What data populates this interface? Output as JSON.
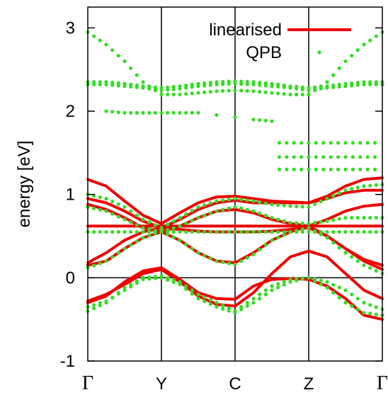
{
  "chart_data": {
    "type": "line",
    "title": "",
    "ylabel": "energy [eV]",
    "xlabel": "",
    "ylim": [
      -1,
      3.25
    ],
    "yticks": [
      "-1",
      "0",
      "1",
      "2",
      "3"
    ],
    "kpoints": [
      "Γ",
      "Y",
      "C",
      "Z",
      "Γ"
    ],
    "grid": {
      "vertical_at_kpoints": true,
      "horizontal_at_zero": true
    },
    "legend": {
      "placement": "top-right",
      "entries": [
        "linearised",
        "QPB"
      ]
    },
    "colors": {
      "linearised": "#ee0000",
      "QPB": "#33dd22"
    },
    "series": [
      {
        "name": "linearised",
        "style": "line",
        "bands": [
          {
            "x": [
              0,
              0.25,
              0.5,
              0.75,
              1,
              1.25,
              1.5,
              1.75,
              2,
              2.25,
              2.5,
              2.75,
              3,
              3.25,
              3.5,
              3.75,
              4
            ],
            "y": [
              -0.3,
              -0.22,
              -0.05,
              0.08,
              0.12,
              -0.02,
              -0.18,
              -0.25,
              -0.26,
              -0.1,
              -0.02,
              -0.01,
              -0.02,
              -0.1,
              -0.25,
              -0.45,
              -0.5
            ]
          },
          {
            "x": [
              0,
              0.25,
              0.5,
              0.75,
              1,
              1.25,
              1.5,
              1.75,
              2,
              2.25,
              2.5,
              2.75,
              3,
              3.25,
              3.5,
              3.75,
              4
            ],
            "y": [
              -0.28,
              -0.2,
              -0.08,
              0.05,
              0.1,
              -0.05,
              -0.22,
              -0.32,
              -0.34,
              -0.18,
              0.05,
              0.25,
              0.32,
              0.25,
              0.05,
              -0.15,
              -0.25
            ]
          },
          {
            "x": [
              0,
              0.25,
              0.5,
              0.75,
              1,
              1.25,
              1.5,
              1.75,
              2,
              2.25,
              2.5,
              2.75,
              3,
              3.25,
              3.5,
              3.75,
              4
            ],
            "y": [
              0.15,
              0.2,
              0.35,
              0.48,
              0.55,
              0.45,
              0.3,
              0.2,
              0.18,
              0.3,
              0.45,
              0.55,
              0.62,
              0.5,
              0.35,
              0.2,
              0.1
            ]
          },
          {
            "x": [
              0,
              0.25,
              0.5,
              0.75,
              1,
              1.25,
              1.5,
              1.75,
              2,
              2.25,
              2.5,
              2.75,
              3,
              3.25,
              3.5,
              3.75,
              4
            ],
            "y": [
              0.18,
              0.3,
              0.45,
              0.55,
              0.6,
              0.58,
              0.56,
              0.55,
              0.55,
              0.55,
              0.56,
              0.58,
              0.6,
              0.5,
              0.35,
              0.22,
              0.15
            ]
          },
          {
            "x": [
              0,
              0.25,
              0.5,
              0.75,
              1,
              1.25,
              1.5,
              1.75,
              2,
              2.25,
              2.5,
              2.75,
              3,
              3.25,
              3.5,
              3.75,
              4
            ],
            "y": [
              0.62,
              0.62,
              0.62,
              0.62,
              0.62,
              0.62,
              0.62,
              0.62,
              0.62,
              0.62,
              0.62,
              0.62,
              0.62,
              0.62,
              0.62,
              0.62,
              0.62
            ]
          },
          {
            "x": [
              0,
              0.25,
              0.5,
              0.75,
              1,
              1.25,
              1.5,
              1.75,
              2,
              2.25,
              2.5,
              2.75,
              3,
              3.25,
              3.5,
              3.75,
              4
            ],
            "y": [
              0.88,
              0.82,
              0.72,
              0.6,
              0.55,
              0.62,
              0.72,
              0.8,
              0.82,
              0.78,
              0.7,
              0.65,
              0.62,
              0.7,
              0.8,
              0.86,
              0.88
            ]
          },
          {
            "x": [
              0,
              0.25,
              0.5,
              0.75,
              1,
              1.25,
              1.5,
              1.75,
              2,
              2.25,
              2.5,
              2.75,
              3,
              3.25,
              3.5,
              3.75,
              4
            ],
            "y": [
              0.95,
              0.9,
              0.8,
              0.68,
              0.6,
              0.7,
              0.82,
              0.9,
              0.93,
              0.9,
              0.9,
              0.9,
              0.9,
              0.95,
              1.02,
              1.05,
              1.05
            ]
          },
          {
            "x": [
              0,
              0.25,
              0.5,
              0.75,
              1,
              1.25,
              1.5,
              1.75,
              2,
              2.25,
              2.5,
              2.75,
              3,
              3.25,
              3.5,
              3.75,
              4
            ],
            "y": [
              1.18,
              1.1,
              0.92,
              0.75,
              0.65,
              0.78,
              0.9,
              0.97,
              0.98,
              0.95,
              0.92,
              0.91,
              0.9,
              0.98,
              1.1,
              1.18,
              1.2
            ]
          }
        ]
      },
      {
        "name": "QPB",
        "style": "dots",
        "bands": [
          {
            "x": [
              0,
              0.25,
              0.5,
              0.75,
              1,
              1.25,
              1.5,
              1.75,
              2,
              2.25,
              2.5,
              2.75,
              3,
              3.25,
              3.5,
              3.75,
              4
            ],
            "y": [
              -0.4,
              -0.3,
              -0.12,
              0.0,
              0.02,
              -0.05,
              -0.2,
              -0.3,
              -0.4,
              -0.25,
              -0.1,
              -0.02,
              0.0,
              -0.12,
              -0.3,
              -0.42,
              -0.45
            ]
          },
          {
            "x": [
              0,
              0.25,
              0.5,
              0.75,
              1,
              1.25,
              1.5,
              1.75,
              2,
              2.25,
              2.5,
              2.75,
              3,
              3.25,
              3.5,
              3.75,
              4
            ],
            "y": [
              -0.35,
              -0.28,
              -0.15,
              -0.02,
              0.0,
              -0.08,
              -0.25,
              -0.35,
              -0.42,
              -0.3,
              -0.15,
              -0.05,
              0.0,
              -0.05,
              -0.15,
              -0.3,
              -0.38
            ]
          },
          {
            "x": [
              0,
              0.25,
              0.5,
              0.75,
              1,
              1.25,
              1.5,
              1.75,
              2,
              2.25,
              2.5,
              2.75,
              3,
              3.25,
              3.5,
              3.75,
              4
            ],
            "y": [
              0.12,
              0.2,
              0.35,
              0.48,
              0.56,
              0.45,
              0.3,
              0.2,
              0.16,
              0.28,
              0.45,
              0.55,
              0.6,
              0.48,
              0.3,
              0.15,
              0.05
            ]
          },
          {
            "x": [
              0,
              0.25,
              0.5,
              0.75,
              1,
              1.25,
              1.5,
              1.75,
              2,
              2.25,
              2.5,
              2.75,
              3,
              3.25,
              3.5,
              3.75,
              4
            ],
            "y": [
              0.55,
              0.55,
              0.55,
              0.55,
              0.55,
              0.55,
              0.55,
              0.55,
              0.55,
              0.55,
              0.55,
              0.55,
              0.55,
              0.55,
              0.55,
              0.55,
              0.55
            ]
          },
          {
            "x": [
              0,
              0.25,
              0.5,
              0.75,
              1,
              1.25,
              1.5,
              1.75,
              2,
              2.25,
              2.5,
              2.75,
              3,
              3.25,
              3.5,
              3.75,
              4
            ],
            "y": [
              0.85,
              0.8,
              0.7,
              0.6,
              0.55,
              0.62,
              0.72,
              0.8,
              0.85,
              0.8,
              0.72,
              0.66,
              0.65,
              0.68,
              0.72,
              0.72,
              0.72
            ]
          },
          {
            "x": [
              0,
              0.25,
              0.5,
              0.75,
              1,
              1.25,
              1.5,
              1.75,
              2,
              2.25,
              2.5,
              2.75,
              3,
              3.25,
              3.5,
              3.75,
              4
            ],
            "y": [
              1.0,
              0.95,
              0.85,
              0.7,
              0.6,
              0.72,
              0.85,
              0.92,
              0.95,
              0.92,
              0.88,
              0.86,
              0.85,
              0.95,
              1.05,
              1.1,
              1.12
            ]
          },
          {
            "x": [
              0,
              0.25,
              0.5,
              0.75,
              1,
              1.25,
              1.5,
              1.75,
              2,
              2.25,
              2.5,
              2.75,
              3,
              3.25,
              3.5,
              3.75,
              4
            ],
            "y": [
              2.32,
              2.32,
              2.3,
              2.28,
              2.25,
              2.27,
              2.3,
              2.32,
              2.33,
              2.32,
              2.3,
              2.28,
              2.25,
              2.28,
              2.3,
              2.32,
              2.32
            ]
          },
          {
            "x": [
              0,
              0.25,
              0.5,
              0.75,
              1,
              1.25,
              1.5,
              1.75,
              2,
              2.25,
              2.5,
              2.75,
              3,
              3.25,
              3.5,
              3.75,
              4
            ],
            "y": [
              2.35,
              2.35,
              2.33,
              2.3,
              2.28,
              2.3,
              2.33,
              2.35,
              2.36,
              2.35,
              2.33,
              2.3,
              2.28,
              2.3,
              2.33,
              2.35,
              2.35
            ]
          },
          {
            "x": [
              0,
              0.25,
              0.5,
              0.75,
              1,
              1.25,
              1.5,
              1.75,
              2,
              2.25,
              2.5,
              2.75,
              3,
              3.25,
              3.5,
              3.75,
              4
            ],
            "y": [
              2.95,
              2.8,
              2.6,
              2.35,
              2.2,
              2.2,
              2.22,
              2.24,
              2.25,
              2.24,
              2.22,
              2.2,
              2.2,
              2.35,
              2.6,
              2.8,
              2.95
            ]
          },
          {
            "x": [
              0.25,
              0.5,
              0.75,
              1,
              1.25,
              1.5,
              2.25,
              2.5
            ],
            "y": [
              2.0,
              1.98,
              1.98,
              1.98,
              1.98,
              1.98,
              1.9,
              1.88
            ]
          },
          {
            "x": [
              2.6,
              2.7,
              2.8,
              2.9,
              3.0,
              3.1,
              3.2,
              3.3,
              3.4,
              3.5,
              3.6,
              3.7,
              3.8,
              3.9
            ],
            "y": [
              1.62,
              1.62,
              1.62,
              1.62,
              1.62,
              1.62,
              1.62,
              1.62,
              1.62,
              1.62,
              1.62,
              1.62,
              1.62,
              1.62
            ]
          },
          {
            "x": [
              2.6,
              2.7,
              2.8,
              2.9,
              3.0,
              3.1,
              3.2,
              3.3,
              3.4,
              3.5,
              3.6,
              3.7,
              3.8,
              3.9
            ],
            "y": [
              1.45,
              1.45,
              1.45,
              1.45,
              1.45,
              1.45,
              1.45,
              1.45,
              1.45,
              1.45,
              1.45,
              1.45,
              1.45,
              1.45
            ]
          },
          {
            "x": [
              2.6,
              2.7,
              2.8,
              2.9,
              3.0,
              3.1,
              3.2,
              3.3,
              3.4,
              3.5,
              3.6,
              3.7,
              3.8,
              3.9
            ],
            "y": [
              1.3,
              1.3,
              1.3,
              1.3,
              1.3,
              1.3,
              1.3,
              1.3,
              1.3,
              1.3,
              1.3,
              1.3,
              1.3,
              1.3
            ]
          }
        ]
      }
    ]
  }
}
